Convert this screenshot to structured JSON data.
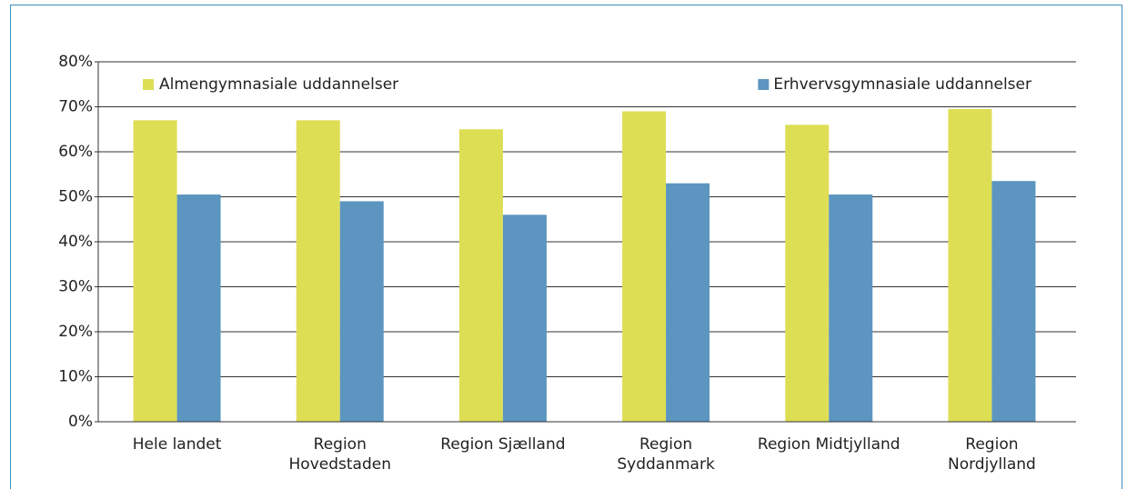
{
  "chart_data": {
    "type": "bar",
    "categories": [
      "Hele landet",
      "Region\nHovedstaden",
      "Region Sjælland",
      "Region\nSyddanmark",
      "Region Midtjylland",
      "Region\nNordjylland"
    ],
    "series": [
      {
        "name": "Almengymnasiale uddannelser",
        "color": "#dede55",
        "values": [
          67,
          67,
          65,
          69,
          66,
          69.5
        ]
      },
      {
        "name": "Erhvervsgymnasiale uddannelser",
        "color": "#5c96c0",
        "values": [
          50.5,
          49,
          46,
          53,
          50.5,
          53.5
        ]
      }
    ],
    "ylim": [
      0,
      80
    ],
    "yticks": [
      {
        "value": 0,
        "label": "0%"
      },
      {
        "value": 10,
        "label": "10%"
      },
      {
        "value": 20,
        "label": "20%"
      },
      {
        "value": 30,
        "label": "30%"
      },
      {
        "value": 40,
        "label": "40%"
      },
      {
        "value": 50,
        "label": "50%"
      },
      {
        "value": 60,
        "label": "60%"
      },
      {
        "value": 70,
        "label": "70%"
      },
      {
        "value": 80,
        "label": "80%"
      }
    ],
    "grid": true,
    "legend": "top"
  }
}
